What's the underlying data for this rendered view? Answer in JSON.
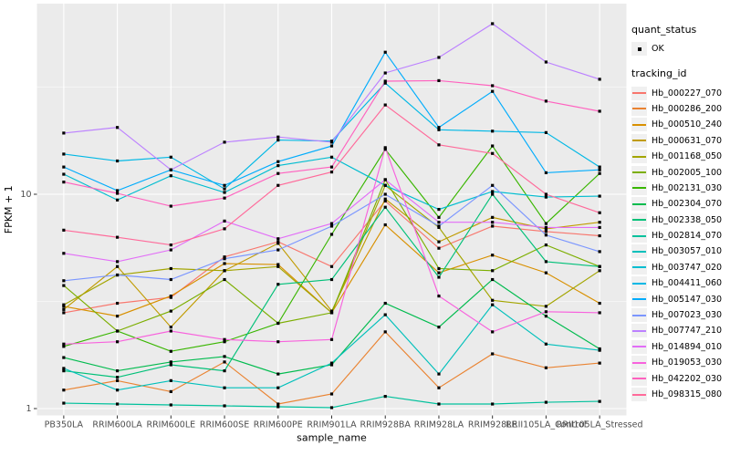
{
  "chart_data": {
    "type": "line",
    "title": "",
    "xlabel": "sample_name",
    "ylabel": "FPKM + 1",
    "y_scale": "log10",
    "y_ticks": [
      1,
      10
    ],
    "y_minor": [
      3.162,
      31.62
    ],
    "ylim_log": [
      0.93,
      72
    ],
    "grid": true,
    "legend_position": "right",
    "categories": [
      "PB350LA",
      "RRIM600LA",
      "RRIM600LE",
      "RRIM600SE",
      "RRIM600PE",
      "RRIM901LA",
      "RRIM928BA",
      "RRIM928LA",
      "RRIM928LE",
      "RRII105LA_Control",
      "RRII105LA_Stressed"
    ],
    "series": [
      {
        "name": "Hb_000227_070",
        "color": "#F8766D",
        "values": [
          2.8,
          3.1,
          3.3,
          5.1,
          6.0,
          4.6,
          9.3,
          5.6,
          7.1,
          6.7,
          6.4
        ]
      },
      {
        "name": "Hb_000286_200",
        "color": "#EA8331",
        "values": [
          1.22,
          1.35,
          1.2,
          1.65,
          1.05,
          1.17,
          2.28,
          1.25,
          1.8,
          1.55,
          1.63
        ]
      },
      {
        "name": "Hb_000510_240",
        "color": "#D89000",
        "values": [
          3.0,
          2.7,
          3.35,
          4.75,
          4.7,
          2.8,
          7.2,
          4.3,
          5.2,
          4.3,
          3.1
        ]
      },
      {
        "name": "Hb_000631_070",
        "color": "#C09B00",
        "values": [
          2.9,
          4.6,
          2.4,
          4.4,
          5.9,
          2.85,
          9.5,
          6.0,
          7.8,
          6.9,
          7.4
        ]
      },
      {
        "name": "Hb_001168_050",
        "color": "#A3A500",
        "values": [
          3.05,
          4.2,
          4.5,
          4.4,
          4.6,
          2.8,
          11.0,
          7.0,
          3.2,
          3.0,
          4.4
        ]
      },
      {
        "name": "Hb_002005_100",
        "color": "#7CAE00",
        "values": [
          3.75,
          2.3,
          2.85,
          4.0,
          2.5,
          2.8,
          11.7,
          4.5,
          4.4,
          5.8,
          4.6
        ]
      },
      {
        "name": "Hb_002131_030",
        "color": "#39B600",
        "values": [
          1.95,
          2.3,
          1.85,
          2.05,
          2.5,
          6.5,
          16.2,
          7.8,
          16.8,
          7.3,
          12.5
        ]
      },
      {
        "name": "Hb_002304_070",
        "color": "#00BB4E",
        "values": [
          1.73,
          1.5,
          1.65,
          1.75,
          1.45,
          1.6,
          3.1,
          2.4,
          4.0,
          2.7,
          1.9
        ]
      },
      {
        "name": "Hb_002338_050",
        "color": "#00C078",
        "values": [
          1.5,
          1.4,
          1.6,
          1.5,
          3.8,
          4.0,
          8.7,
          4.1,
          10.0,
          4.85,
          4.6
        ]
      },
      {
        "name": "Hb_002814_070",
        "color": "#00C19C",
        "values": [
          1.06,
          1.05,
          1.04,
          1.03,
          1.02,
          1.01,
          1.14,
          1.05,
          1.05,
          1.07,
          1.08
        ]
      },
      {
        "name": "Hb_003057_010",
        "color": "#00C0BB",
        "values": [
          1.54,
          1.22,
          1.35,
          1.25,
          1.25,
          1.63,
          2.74,
          1.45,
          3.05,
          2.0,
          1.87
        ]
      },
      {
        "name": "Hb_003747_020",
        "color": "#00BDD0",
        "values": [
          12.4,
          9.4,
          12.2,
          10.2,
          13.6,
          14.9,
          11.0,
          8.5,
          10.3,
          9.7,
          9.8
        ]
      },
      {
        "name": "Hb_004411_060",
        "color": "#00B8E5",
        "values": [
          15.4,
          14.3,
          14.9,
          10.6,
          17.9,
          17.7,
          33.0,
          20.0,
          19.7,
          19.4,
          13.4
        ]
      },
      {
        "name": "Hb_005147_030",
        "color": "#00ACFC",
        "values": [
          13.4,
          10.4,
          13.0,
          11.0,
          14.2,
          16.8,
          46.0,
          20.5,
          30.2,
          12.6,
          13.0
        ]
      },
      {
        "name": "Hb_007023_030",
        "color": "#7B96FF",
        "values": [
          3.95,
          4.2,
          4.0,
          5.0,
          5.5,
          7.1,
          10.0,
          7.1,
          11.0,
          6.45,
          5.4
        ]
      },
      {
        "name": "Hb_007747_210",
        "color": "#BC81FF",
        "values": [
          19.3,
          20.5,
          13.0,
          17.5,
          18.5,
          17.5,
          36.8,
          43.5,
          62.5,
          41.4,
          34.4
        ]
      },
      {
        "name": "Hb_014894_010",
        "color": "#E26EF7",
        "values": [
          5.3,
          4.85,
          5.5,
          7.5,
          6.2,
          7.3,
          11.7,
          7.4,
          7.4,
          7.0,
          7.0
        ]
      },
      {
        "name": "Hb_019053_030",
        "color": "#F862DD",
        "values": [
          2.0,
          2.05,
          2.3,
          2.1,
          2.05,
          2.1,
          16.5,
          3.35,
          2.28,
          2.83,
          2.8
        ]
      },
      {
        "name": "Hb_042202_030",
        "color": "#FF62BF",
        "values": [
          11.4,
          10.1,
          8.8,
          9.6,
          12.5,
          13.4,
          33.7,
          33.9,
          32.1,
          27.2,
          24.4
        ]
      },
      {
        "name": "Hb_098315_080",
        "color": "#FF6A9A",
        "values": [
          6.8,
          6.3,
          5.8,
          6.9,
          11.0,
          12.7,
          26.1,
          17.0,
          15.5,
          10.0,
          8.2
        ]
      }
    ]
  },
  "legend": {
    "quant_status_title": "quant_status",
    "quant_status_items": [
      {
        "label": "OK",
        "marker": "black-square-point"
      }
    ],
    "tracking_id_title": "tracking_id"
  },
  "style": {
    "panel_bg": "#EBEBEB",
    "grid_color": "#FFFFFF",
    "tick_label_color": "#4D4D4D",
    "axis_title_color": "#000000",
    "point_color": "#000000"
  }
}
